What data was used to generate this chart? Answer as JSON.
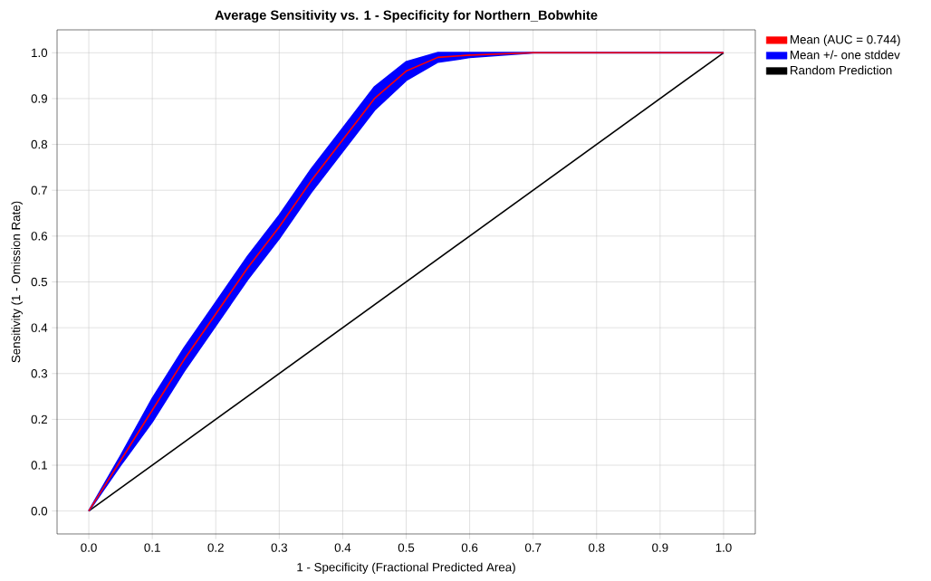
{
  "chart_data": {
    "type": "line",
    "title": "Average Sensitivity vs. 1 - Specificity for Northern_Bobwhite",
    "xlabel": "1 - Specificity (Fractional Predicted Area)",
    "ylabel": "Sensitivity (1 - Omission Rate)",
    "x": [
      0,
      0.05,
      0.1,
      0.15,
      0.2,
      0.25,
      0.3,
      0.35,
      0.4,
      0.45,
      0.5,
      0.55,
      0.6,
      0.7,
      0.8,
      0.9,
      1.0
    ],
    "series": [
      {
        "name": "Mean (AUC = 0.744)",
        "color": "#ff0000",
        "values": [
          0,
          0.11,
          0.22,
          0.33,
          0.43,
          0.53,
          0.62,
          0.72,
          0.81,
          0.9,
          0.96,
          0.99,
          0.995,
          1,
          1,
          1,
          1
        ]
      },
      {
        "name": "Mean +/- one stddev",
        "color": "#0000ff",
        "values": [
          null,
          null,
          null,
          null,
          null,
          null,
          null,
          null,
          null,
          null,
          null,
          null,
          null,
          null,
          null,
          null,
          null
        ],
        "lower": [
          0,
          0.1,
          0.195,
          0.305,
          0.405,
          0.505,
          0.595,
          0.695,
          0.785,
          0.875,
          0.94,
          0.98,
          0.99,
          1,
          1,
          1,
          1
        ],
        "upper": [
          0,
          0.12,
          0.245,
          0.355,
          0.455,
          0.555,
          0.645,
          0.745,
          0.835,
          0.925,
          0.98,
          1,
          1,
          1,
          1,
          1,
          1
        ]
      },
      {
        "name": "Random Prediction",
        "color": "#000000",
        "x": [
          0,
          1.0
        ],
        "values": [
          0,
          1.0
        ]
      }
    ],
    "xlim": [
      -0.05,
      1.05
    ],
    "ylim": [
      -0.05,
      1.05
    ],
    "xticks": [
      {
        "value": 0,
        "label": "0.0"
      },
      0.1,
      0.2,
      0.3,
      0.4,
      0.5,
      0.6,
      0.7,
      0.8,
      0.9,
      {
        "value": 1,
        "label": "1.0"
      }
    ],
    "yticks": [
      {
        "value": 0,
        "label": "0.0"
      },
      0.1,
      0.2,
      0.3,
      0.4,
      0.5,
      0.6,
      0.7,
      0.8,
      0.9,
      {
        "value": 1,
        "label": "1.0"
      }
    ],
    "grid": true,
    "legend": "right",
    "marker": "none",
    "line_style": "solid"
  }
}
